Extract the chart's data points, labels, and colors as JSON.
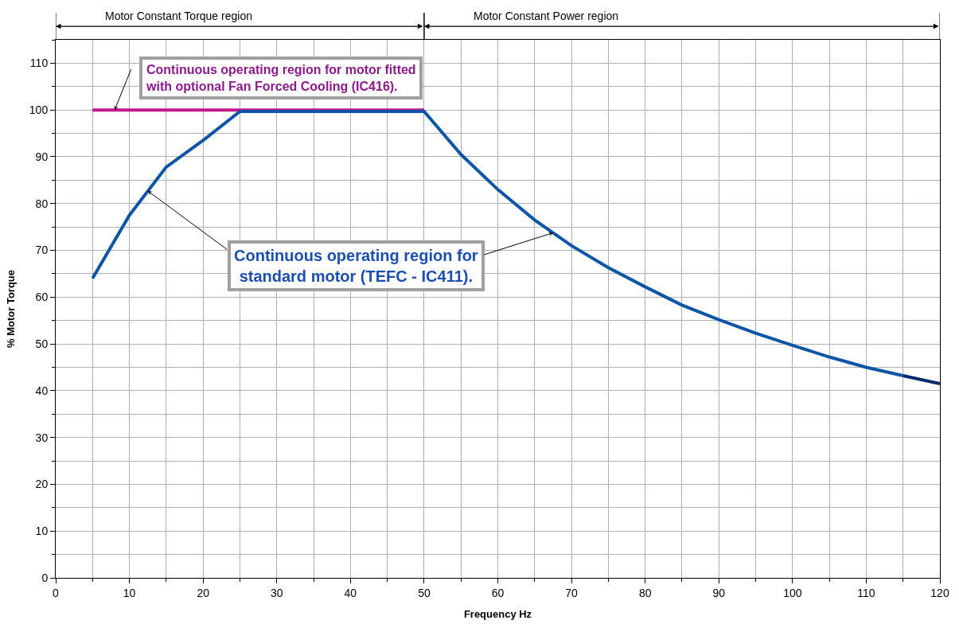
{
  "chart_data": {
    "type": "line",
    "xlabel": "Frequency Hz",
    "ylabel": "% Motor Torque",
    "xlim": [
      0,
      120
    ],
    "xticks": [
      0,
      10,
      20,
      30,
      40,
      50,
      60,
      70,
      80,
      90,
      100,
      110,
      120
    ],
    "ylim": [
      0,
      115
    ],
    "yticks": [
      0,
      10,
      20,
      30,
      40,
      50,
      60,
      70,
      80,
      90,
      100,
      110
    ],
    "grid": true,
    "marker": "none",
    "line_style": "solid",
    "series": [
      {
        "color": "#c0188c",
        "x": [
          5,
          50
        ],
        "values": [
          100,
          100
        ]
      },
      {
        "color": "#0f55a5",
        "x": [
          5,
          10,
          15,
          20,
          25,
          50,
          55,
          60,
          65,
          70,
          75,
          80,
          85,
          90,
          95,
          100,
          105,
          110,
          115
        ],
        "values": [
          64,
          77.5,
          87.8,
          93.5,
          99.7,
          99.7,
          90.5,
          83,
          76.5,
          71,
          66.3,
          62.2,
          58.3,
          55.2,
          52.3,
          49.7,
          47.2,
          45,
          43.2
        ]
      },
      {
        "color": "#0a2a6e",
        "x": [
          115,
          120
        ],
        "values": [
          43.2,
          41.5
        ]
      }
    ],
    "annotations": [
      "Motor Constant Torque region",
      "Motor Constant Power region",
      {
        "text": "Continuous operating region for motor fitted\nwith optional Fan Forced Cooling (IC416).",
        "x": 8,
        "y": 100
      },
      {
        "text": "Continuous operating region for\nstandard motor (TEFC - IC411).",
        "x": 12.5,
        "y": 82.7
      }
    ]
  }
}
